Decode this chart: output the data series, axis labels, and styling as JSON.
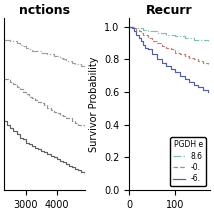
{
  "left_title": "nctions",
  "right_title": "Recurr",
  "ylabel_left": "",
  "ylabel_right": "Survivor Probability",
  "left_xticks": [
    3000,
    4000
  ],
  "right_xticks": [
    0,
    100
  ],
  "left_xlim": [
    2300,
    4900
  ],
  "right_xlim": [
    0,
    175
  ],
  "left_ylim": [
    0,
    1.05
  ],
  "right_ylim": [
    0,
    1.05
  ],
  "right_yticks": [
    0,
    0.2,
    0.4,
    0.6,
    0.8,
    1.0
  ],
  "legend_title": "PGDH e",
  "legend_labels": [
    "8.6",
    "-0.",
    "-6."
  ],
  "colors_left": [
    "#a0a0a0",
    "#909090",
    "#606060"
  ],
  "colors_right": [
    "#80c0b0",
    "#c08080",
    "#5060a0"
  ],
  "linestyles": [
    "-.",
    "--",
    "-"
  ],
  "background": "#ffffff",
  "title_fontsize": 9,
  "axis_fontsize": 7,
  "tick_fontsize": 7,
  "left_curves": {
    "curve1": {
      "x": [
        2300,
        2500,
        2600,
        2700,
        2800,
        2900,
        3000,
        3100,
        3200,
        3400,
        3500,
        3700,
        3900,
        4000,
        4100,
        4200,
        4300,
        4500,
        4600,
        4800,
        4900
      ],
      "y": [
        0.92,
        0.91,
        0.91,
        0.9,
        0.89,
        0.88,
        0.87,
        0.86,
        0.85,
        0.85,
        0.84,
        0.83,
        0.82,
        0.82,
        0.81,
        0.8,
        0.79,
        0.78,
        0.77,
        0.76,
        0.75
      ]
    },
    "curve2": {
      "x": [
        2300,
        2500,
        2600,
        2700,
        2800,
        2900,
        3000,
        3100,
        3200,
        3300,
        3400,
        3500,
        3600,
        3700,
        3800,
        3900,
        4000,
        4100,
        4200,
        4300,
        4500,
        4600,
        4700,
        4900
      ],
      "y": [
        0.68,
        0.66,
        0.65,
        0.63,
        0.62,
        0.6,
        0.59,
        0.57,
        0.56,
        0.55,
        0.54,
        0.53,
        0.52,
        0.5,
        0.49,
        0.48,
        0.47,
        0.46,
        0.45,
        0.44,
        0.42,
        0.41,
        0.4,
        0.38
      ]
    },
    "curve3": {
      "x": [
        2300,
        2400,
        2500,
        2600,
        2700,
        2800,
        2900,
        3000,
        3100,
        3200,
        3300,
        3400,
        3500,
        3600,
        3700,
        3800,
        3900,
        4000,
        4100,
        4200,
        4300,
        4400,
        4500,
        4600,
        4700,
        4800,
        4900
      ],
      "y": [
        0.42,
        0.4,
        0.38,
        0.36,
        0.34,
        0.32,
        0.31,
        0.29,
        0.28,
        0.27,
        0.26,
        0.25,
        0.24,
        0.23,
        0.22,
        0.21,
        0.2,
        0.19,
        0.18,
        0.17,
        0.16,
        0.15,
        0.14,
        0.13,
        0.12,
        0.11,
        0.1
      ]
    }
  },
  "right_curves": {
    "curve1": {
      "x": [
        0,
        5,
        10,
        20,
        30,
        40,
        50,
        60,
        70,
        80,
        90,
        100,
        110,
        120,
        130,
        140,
        150,
        160,
        170
      ],
      "y": [
        1.0,
        1.0,
        0.99,
        0.99,
        0.98,
        0.97,
        0.97,
        0.96,
        0.96,
        0.95,
        0.95,
        0.94,
        0.94,
        0.93,
        0.93,
        0.92,
        0.92,
        0.92,
        0.91
      ]
    },
    "curve2": {
      "x": [
        0,
        5,
        10,
        15,
        20,
        25,
        30,
        40,
        50,
        60,
        70,
        80,
        90,
        100,
        110,
        120,
        130,
        140,
        150,
        160,
        170
      ],
      "y": [
        1.0,
        1.0,
        0.99,
        0.98,
        0.97,
        0.96,
        0.95,
        0.93,
        0.91,
        0.9,
        0.88,
        0.87,
        0.86,
        0.84,
        0.83,
        0.82,
        0.81,
        0.8,
        0.79,
        0.78,
        0.77
      ]
    },
    "curve3": {
      "x": [
        0,
        5,
        10,
        15,
        20,
        25,
        30,
        35,
        40,
        50,
        60,
        70,
        80,
        90,
        100,
        110,
        120,
        130,
        140,
        150,
        160,
        170
      ],
      "y": [
        1.0,
        0.99,
        0.97,
        0.95,
        0.93,
        0.91,
        0.89,
        0.87,
        0.86,
        0.83,
        0.8,
        0.78,
        0.76,
        0.74,
        0.72,
        0.7,
        0.68,
        0.66,
        0.64,
        0.63,
        0.61,
        0.6
      ]
    }
  }
}
